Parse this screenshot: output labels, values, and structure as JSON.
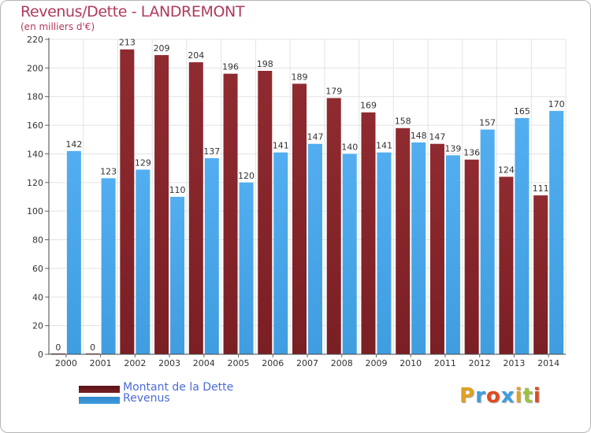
{
  "chart_data": {
    "type": "bar",
    "title": "Revenus/Dette - LANDREMONT",
    "subtitle": "(en milliers d'€)",
    "categories": [
      "2000",
      "2001",
      "2002",
      "2003",
      "2004",
      "2005",
      "2006",
      "2007",
      "2008",
      "2009",
      "2010",
      "2011",
      "2012",
      "2013",
      "2014"
    ],
    "series": [
      {
        "name": "Montant de la Dette",
        "color": "#7a1f24",
        "values": [
          0,
          0,
          213,
          209,
          204,
          196,
          198,
          189,
          179,
          169,
          158,
          147,
          136,
          124,
          111
        ]
      },
      {
        "name": "Revenus",
        "color": "#3f9de0",
        "values": [
          142,
          123,
          129,
          110,
          137,
          120,
          141,
          147,
          140,
          141,
          148,
          139,
          157,
          165,
          170
        ]
      }
    ],
    "ylim": [
      0,
      220
    ],
    "yticks": [
      0,
      20,
      40,
      60,
      80,
      100,
      120,
      140,
      160,
      180,
      200,
      220
    ],
    "grid": true,
    "legend_position": "bottom-left"
  },
  "logo": {
    "letters": [
      "P",
      "r",
      "o",
      "x",
      "i",
      "t",
      "i"
    ],
    "colors": [
      "#e0a020",
      "#3f9de0",
      "#e04a20",
      "#3f9de0",
      "#e0a020",
      "#9bc23c",
      "#e04a20"
    ]
  }
}
